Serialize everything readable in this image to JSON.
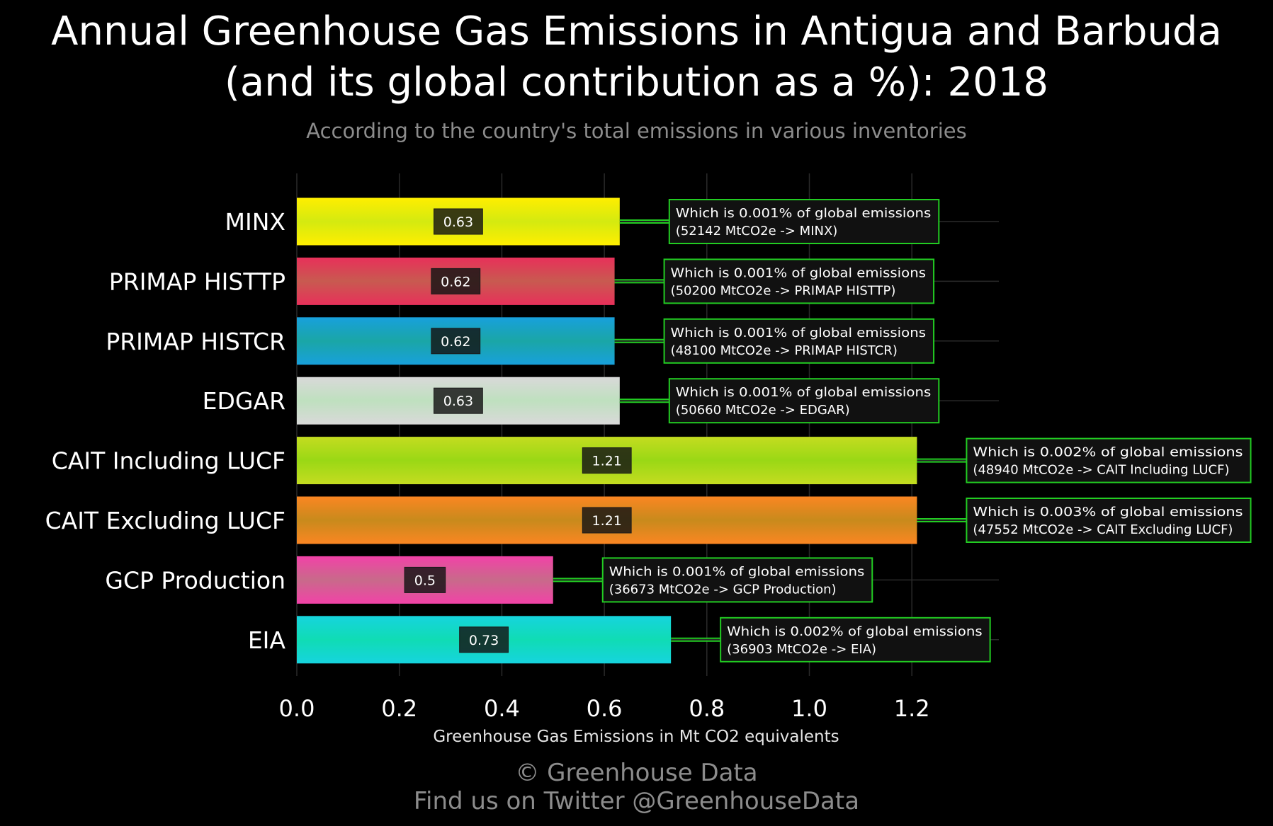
{
  "title_line1": "Annual Greenhouse Gas Emissions in Antigua and Barbuda",
  "title_line2": "(and its global contribution as a %): 2018",
  "subtitle": "According to the country's total emissions in various inventories",
  "footer": {
    "credit": "© Greenhouse Data",
    "twitter": "Find us on Twitter @GreenhouseData"
  },
  "colors": {
    "background": "#000000",
    "grid": "#2a2a2a",
    "annotation_border": "#22cc22",
    "annotation_fill": "#111111",
    "connector": "#22cc22"
  },
  "chart_data": {
    "type": "bar",
    "orientation": "horizontal",
    "xlabel": "Greenhouse Gas Emissions in Mt CO2 equivalents",
    "xlim": [
      0,
      1.35
    ],
    "xticks": [
      "0.0",
      "0.2",
      "0.4",
      "0.6",
      "0.8",
      "1.0",
      "1.2"
    ],
    "xtick_values": [
      0.0,
      0.2,
      0.4,
      0.6,
      0.8,
      1.0,
      1.2
    ],
    "grid": true,
    "bars": [
      {
        "category": "MINX",
        "value": 0.63,
        "label": "0.63",
        "color": "#ffee00",
        "color_mid": "#d4ea10",
        "annotation_line1": "Which is 0.001% of global emissions",
        "annotation_line2": "(52142 MtCO2e -> MINX)"
      },
      {
        "category": "PRIMAP HISTTP",
        "value": 0.62,
        "label": "0.62",
        "color": "#e8305a",
        "color_mid": "#c85a50",
        "annotation_line1": "Which is 0.001% of global emissions",
        "annotation_line2": "(50200 MtCO2e -> PRIMAP HISTTP)"
      },
      {
        "category": "PRIMAP HISTCR",
        "value": 0.62,
        "label": "0.62",
        "color": "#18a0dc",
        "color_mid": "#1aa6a6",
        "annotation_line1": "Which is 0.001% of global emissions",
        "annotation_line2": "(48100 MtCO2e -> PRIMAP HISTCR)"
      },
      {
        "category": "EDGAR",
        "value": 0.63,
        "label": "0.63",
        "color": "#d9d9d9",
        "color_mid": "#bfe0bf",
        "annotation_line1": "Which is 0.001% of global emissions",
        "annotation_line2": "(50660 MtCO2e -> EDGAR)"
      },
      {
        "category": "CAIT Including LUCF",
        "value": 1.21,
        "label": "1.21",
        "color": "#c4dc20",
        "color_mid": "#9ad815",
        "annotation_line1": "Which is 0.002% of global emissions",
        "annotation_line2": "(48940 MtCO2e -> CAIT Including LUCF)"
      },
      {
        "category": "CAIT Excluding LUCF",
        "value": 1.21,
        "label": "1.21",
        "color": "#fb8622",
        "color_mid": "#c88a1c",
        "annotation_line1": "Which is 0.003% of global emissions",
        "annotation_line2": "(47552 MtCO2e -> CAIT Excluding LUCF)"
      },
      {
        "category": "GCP Production",
        "value": 0.5,
        "label": "0.5",
        "color": "#f242a8",
        "color_mid": "#c86a8a",
        "annotation_line1": "Which is 0.001% of global emissions",
        "annotation_line2": "(36673 MtCO2e -> GCP Production)"
      },
      {
        "category": "EIA",
        "value": 0.73,
        "label": "0.73",
        "color": "#16d4de",
        "color_mid": "#10dcb4",
        "annotation_line1": "Which is 0.002% of global emissions",
        "annotation_line2": "(36903 MtCO2e -> EIA)"
      }
    ]
  }
}
